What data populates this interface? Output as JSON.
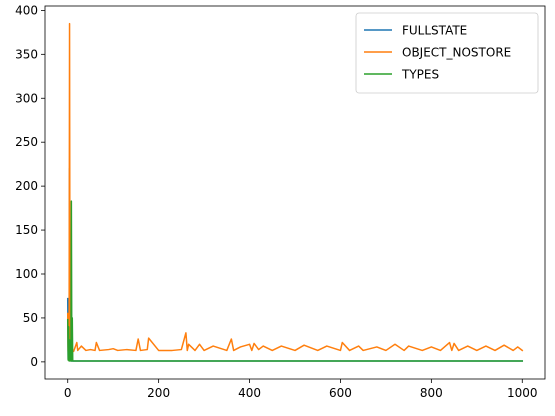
{
  "chart_data": {
    "type": "line",
    "title": "",
    "xlabel": "",
    "ylabel": "",
    "xlim": [
      -50,
      1050
    ],
    "ylim": [
      -19.5,
      405
    ],
    "xticks": [
      0,
      200,
      400,
      600,
      800,
      1000
    ],
    "yticks": [
      0,
      50,
      100,
      150,
      200,
      250,
      300,
      350,
      400
    ],
    "grid": false,
    "legend_position": "top-right",
    "series": [
      {
        "name": "FULLSTATE",
        "color": "#1f77b4",
        "x": [
          0,
          1,
          2,
          3,
          4,
          5,
          6,
          7,
          8,
          9,
          10,
          11,
          12,
          20,
          50,
          100,
          200,
          400,
          600,
          800,
          1000
        ],
        "y": [
          72,
          3,
          60,
          5,
          220,
          2,
          30,
          2,
          1,
          1,
          1,
          1,
          1,
          1,
          1,
          1,
          1,
          1,
          1,
          1,
          1
        ]
      },
      {
        "name": "OBJECT_NOSTORE",
        "color": "#ff7f0e",
        "x": [
          0,
          1,
          2,
          3,
          4,
          5,
          6,
          7,
          8,
          9,
          10,
          11,
          12,
          13,
          20,
          22,
          30,
          40,
          50,
          60,
          63,
          70,
          90,
          100,
          110,
          130,
          150,
          155,
          160,
          175,
          178,
          200,
          230,
          250,
          260,
          263,
          266,
          280,
          290,
          300,
          320,
          350,
          360,
          365,
          380,
          400,
          405,
          410,
          420,
          430,
          450,
          470,
          500,
          520,
          550,
          570,
          600,
          604,
          620,
          640,
          650,
          680,
          700,
          720,
          740,
          750,
          780,
          800,
          820,
          840,
          845,
          850,
          860,
          880,
          900,
          920,
          940,
          960,
          980,
          990,
          1000
        ],
        "y": [
          55,
          12,
          50,
          10,
          385,
          14,
          60,
          12,
          13,
          12,
          13,
          12,
          12,
          12,
          22,
          13,
          18,
          13,
          14,
          13,
          22,
          13,
          14,
          15,
          13,
          14,
          13,
          26,
          13,
          14,
          27,
          13,
          13,
          14,
          33,
          13,
          20,
          13,
          20,
          13,
          18,
          13,
          26,
          13,
          17,
          20,
          13,
          21,
          14,
          18,
          13,
          18,
          13,
          19,
          13,
          18,
          13,
          22,
          13,
          18,
          13,
          17,
          13,
          20,
          13,
          18,
          13,
          17,
          13,
          22,
          13,
          21,
          13,
          18,
          13,
          18,
          13,
          19,
          13,
          17,
          13
        ]
      },
      {
        "name": "TYPES",
        "color": "#2ca02c",
        "x": [
          0,
          1,
          2,
          3,
          4,
          5,
          6,
          7,
          8,
          9,
          10,
          11,
          12,
          50,
          100,
          400,
          800,
          1000
        ],
        "y": [
          48,
          2,
          40,
          1,
          25,
          1,
          15,
          1,
          183,
          1,
          50,
          1,
          1,
          1,
          1,
          1,
          1,
          1
        ]
      }
    ]
  }
}
